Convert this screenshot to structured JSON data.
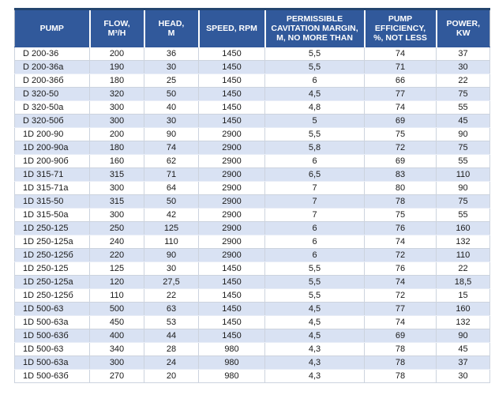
{
  "table": {
    "columns": [
      "PUMP",
      "FLOW,\nM³/H",
      "HEAD,\nM",
      "SPEED, RPM",
      "PERMISSIBLE\nCAVITATION MARGIN,\nM, NO MORE THAN",
      "PUMP\nEFFICIENCY,\n%, NOT LESS",
      "POWER,\nKW"
    ],
    "column_keys": [
      "pump",
      "flow",
      "head",
      "speed",
      "cavitation-margin",
      "efficiency",
      "power"
    ],
    "rows": [
      [
        "D 200-36",
        "200",
        "36",
        "1450",
        "5,5",
        "74",
        "37"
      ],
      [
        "D 200-36a",
        "190",
        "30",
        "1450",
        "5,5",
        "71",
        "30"
      ],
      [
        "D 200-36б",
        "180",
        "25",
        "1450",
        "6",
        "66",
        "22"
      ],
      [
        "D 320-50",
        "320",
        "50",
        "1450",
        "4,5",
        "77",
        "75"
      ],
      [
        "D 320-50a",
        "300",
        "40",
        "1450",
        "4,8",
        "74",
        "55"
      ],
      [
        "D 320-50б",
        "300",
        "30",
        "1450",
        "5",
        "69",
        "45"
      ],
      [
        "1D 200-90",
        "200",
        "90",
        "2900",
        "5,5",
        "75",
        "90"
      ],
      [
        "1D 200-90a",
        "180",
        "74",
        "2900",
        "5,8",
        "72",
        "75"
      ],
      [
        "1D 200-90б",
        "160",
        "62",
        "2900",
        "6",
        "69",
        "55"
      ],
      [
        "1D 315-71",
        "315",
        "71",
        "2900",
        "6,5",
        "83",
        "110"
      ],
      [
        "1D 315-71a",
        "300",
        "64",
        "2900",
        "7",
        "80",
        "90"
      ],
      [
        "1D 315-50",
        "315",
        "50",
        "2900",
        "7",
        "78",
        "75"
      ],
      [
        "1D 315-50a",
        "300",
        "42",
        "2900",
        "7",
        "75",
        "55"
      ],
      [
        "1D 250-125",
        "250",
        "125",
        "2900",
        "6",
        "76",
        "160"
      ],
      [
        "1D 250-125a",
        "240",
        "110",
        "2900",
        "6",
        "74",
        "132"
      ],
      [
        "1D 250-125б",
        "220",
        "90",
        "2900",
        "6",
        "72",
        "110"
      ],
      [
        "1D 250-125",
        "125",
        "30",
        "1450",
        "5,5",
        "76",
        "22"
      ],
      [
        "1D 250-125a",
        "120",
        "27,5",
        "1450",
        "5,5",
        "74",
        "18,5"
      ],
      [
        "1D 250-125б",
        "110",
        "22",
        "1450",
        "5,5",
        "72",
        "15"
      ],
      [
        "1D 500-63",
        "500",
        "63",
        "1450",
        "4,5",
        "77",
        "160"
      ],
      [
        "1D 500-63a",
        "450",
        "53",
        "1450",
        "4,5",
        "74",
        "132"
      ],
      [
        "1D 500-63б",
        "400",
        "44",
        "1450",
        "4,5",
        "69",
        "90"
      ],
      [
        "1D 500-63",
        "340",
        "28",
        "980",
        "4,3",
        "78",
        "45"
      ],
      [
        "1D 500-63a",
        "300",
        "24",
        "980",
        "4,3",
        "78",
        "37"
      ],
      [
        "1D 500-63б",
        "270",
        "20",
        "980",
        "4,3",
        "78",
        "30"
      ]
    ]
  },
  "colors": {
    "header_bg": "#31599b",
    "header_top_border": "#24456e",
    "stripe_row_bg": "#d9e2f3",
    "row_bg": "#ffffff",
    "cell_border": "#ccd3de",
    "header_text": "#ffffff",
    "body_text": "#1a1a1a"
  }
}
